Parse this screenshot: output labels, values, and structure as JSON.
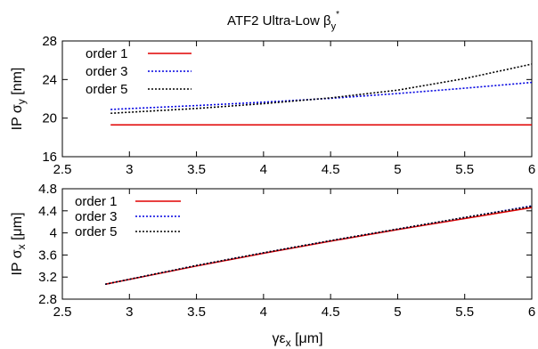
{
  "chart_data": [
    {
      "type": "line",
      "title": "ATF2 Ultra-Low βy*",
      "title_parts": {
        "main": "ATF2 Ultra-Low β",
        "sub": "y",
        "sup": "*"
      },
      "ylabel": "IP σy [nm]",
      "ylabel_parts": {
        "main": "IP σ",
        "sub": "y",
        "unit": " [nm]"
      },
      "xlabel": "",
      "xlim": [
        2.5,
        6
      ],
      "ylim": [
        16,
        28
      ],
      "xticks": [
        "2.5",
        "3",
        "3.5",
        "4",
        "4.5",
        "5",
        "5.5",
        "6"
      ],
      "yticks": [
        "16",
        "20",
        "24",
        "28"
      ],
      "grid": false,
      "legend_position": "top-left",
      "x": [
        2.86,
        3.5,
        4.0,
        4.5,
        5.0,
        5.5,
        6.0
      ],
      "series": [
        {
          "name": "order 1",
          "color": "#e00000",
          "style": "solid",
          "values": [
            19.3,
            19.3,
            19.3,
            19.3,
            19.3,
            19.3,
            19.3
          ]
        },
        {
          "name": "order 3",
          "color": "#0000e0",
          "style": "dotted",
          "values": [
            20.9,
            21.3,
            21.65,
            22.05,
            22.55,
            23.1,
            23.7
          ]
        },
        {
          "name": "order 5",
          "color": "#000000",
          "style": "dotted",
          "values": [
            20.5,
            21.0,
            21.5,
            22.1,
            22.9,
            24.1,
            25.6
          ]
        }
      ]
    },
    {
      "type": "line",
      "title": "",
      "ylabel": "IP σx [μm]",
      "ylabel_parts": {
        "main": "IP σ",
        "sub": "x",
        "unit": " [μm]"
      },
      "xlabel": "γεx [μm]",
      "xlabel_parts": {
        "main": "γε",
        "sub": "x",
        "unit": " [μm]"
      },
      "xlim": [
        2.5,
        6
      ],
      "ylim": [
        2.8,
        4.8
      ],
      "xticks": [
        "2.5",
        "3",
        "3.5",
        "4",
        "4.5",
        "5",
        "5.5",
        "6"
      ],
      "yticks": [
        "2.8",
        "3.2",
        "3.6",
        "4",
        "4.4",
        "4.8"
      ],
      "grid": false,
      "legend_position": "top-left",
      "x": [
        2.82,
        3.5,
        4.0,
        4.5,
        5.0,
        5.5,
        6.0
      ],
      "series": [
        {
          "name": "order 1",
          "color": "#e00000",
          "style": "solid",
          "values": [
            3.07,
            3.4,
            3.63,
            3.85,
            4.06,
            4.26,
            4.46
          ]
        },
        {
          "name": "order 3",
          "color": "#0000e0",
          "style": "dotted",
          "values": [
            3.07,
            3.41,
            3.64,
            3.86,
            4.07,
            4.28,
            4.49
          ]
        },
        {
          "name": "order 5",
          "color": "#000000",
          "style": "dotted",
          "values": [
            3.07,
            3.41,
            3.64,
            3.86,
            4.07,
            4.28,
            4.48
          ]
        }
      ]
    }
  ]
}
